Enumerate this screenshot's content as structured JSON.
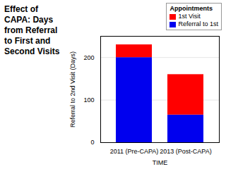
{
  "chart_data": {
    "type": "bar",
    "stacked": true,
    "title": "Effect of CAPA: Days from Referral to First and Second Visits",
    "xlabel": "TIME",
    "ylabel": "Referral to 2nd Visit (Days)",
    "categories": [
      "2011 (Pre-CAPA)",
      "2013 (Post-CAPA)"
    ],
    "series": [
      {
        "name": "Referral to 1st",
        "color": "#0000EE",
        "values": [
          200,
          65
        ]
      },
      {
        "name": "1st Visit",
        "color": "#FF0000",
        "values": [
          30,
          95
        ]
      }
    ],
    "legend_title": "Appointments",
    "legend": "upper right",
    "ylim": [
      0,
      250
    ],
    "yticks": [
      0,
      100,
      200
    ],
    "grid": true
  }
}
